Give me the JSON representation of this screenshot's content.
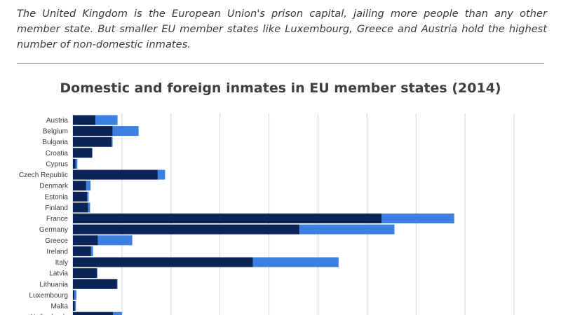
{
  "intro_text": "The United Kingdom is the European Union's prison capital, jailing more people than any other member state. But smaller EU member states like Luxembourg, Greece and Austria hold the highest number of non-domestic inmates.",
  "chart_data": {
    "type": "bar",
    "orientation": "horizontal",
    "stacked": true,
    "title": "Domestic and foreign inmates in EU member states (2014)",
    "categories": [
      "Austria",
      "Belgium",
      "Bulgaria",
      "Croatia",
      "Cyprus",
      "Czech Republic",
      "Denmark",
      "Estonia",
      "Finland",
      "France",
      "Germany",
      "Greece",
      "Ireland",
      "Italy",
      "Latvia",
      "Lithuania",
      "Luxembourg",
      "Malta",
      "Netherlands"
    ],
    "series": [
      {
        "values": [
          4600,
          8100,
          7900,
          3900,
          500,
          17300,
          2700,
          2900,
          3100,
          63000,
          46200,
          5100,
          3700,
          36700,
          4900,
          9000,
          300,
          400,
          8200
        ]
      },
      {
        "values": [
          4500,
          5300,
          200,
          100,
          400,
          1500,
          900,
          300,
          400,
          14800,
          19400,
          7000,
          400,
          17500,
          100,
          100,
          400,
          200,
          1800
        ]
      }
    ],
    "colors": [
      "#0b2457",
      "#3b7fe3"
    ],
    "xlim": [
      0,
      90000
    ],
    "grid": true
  }
}
